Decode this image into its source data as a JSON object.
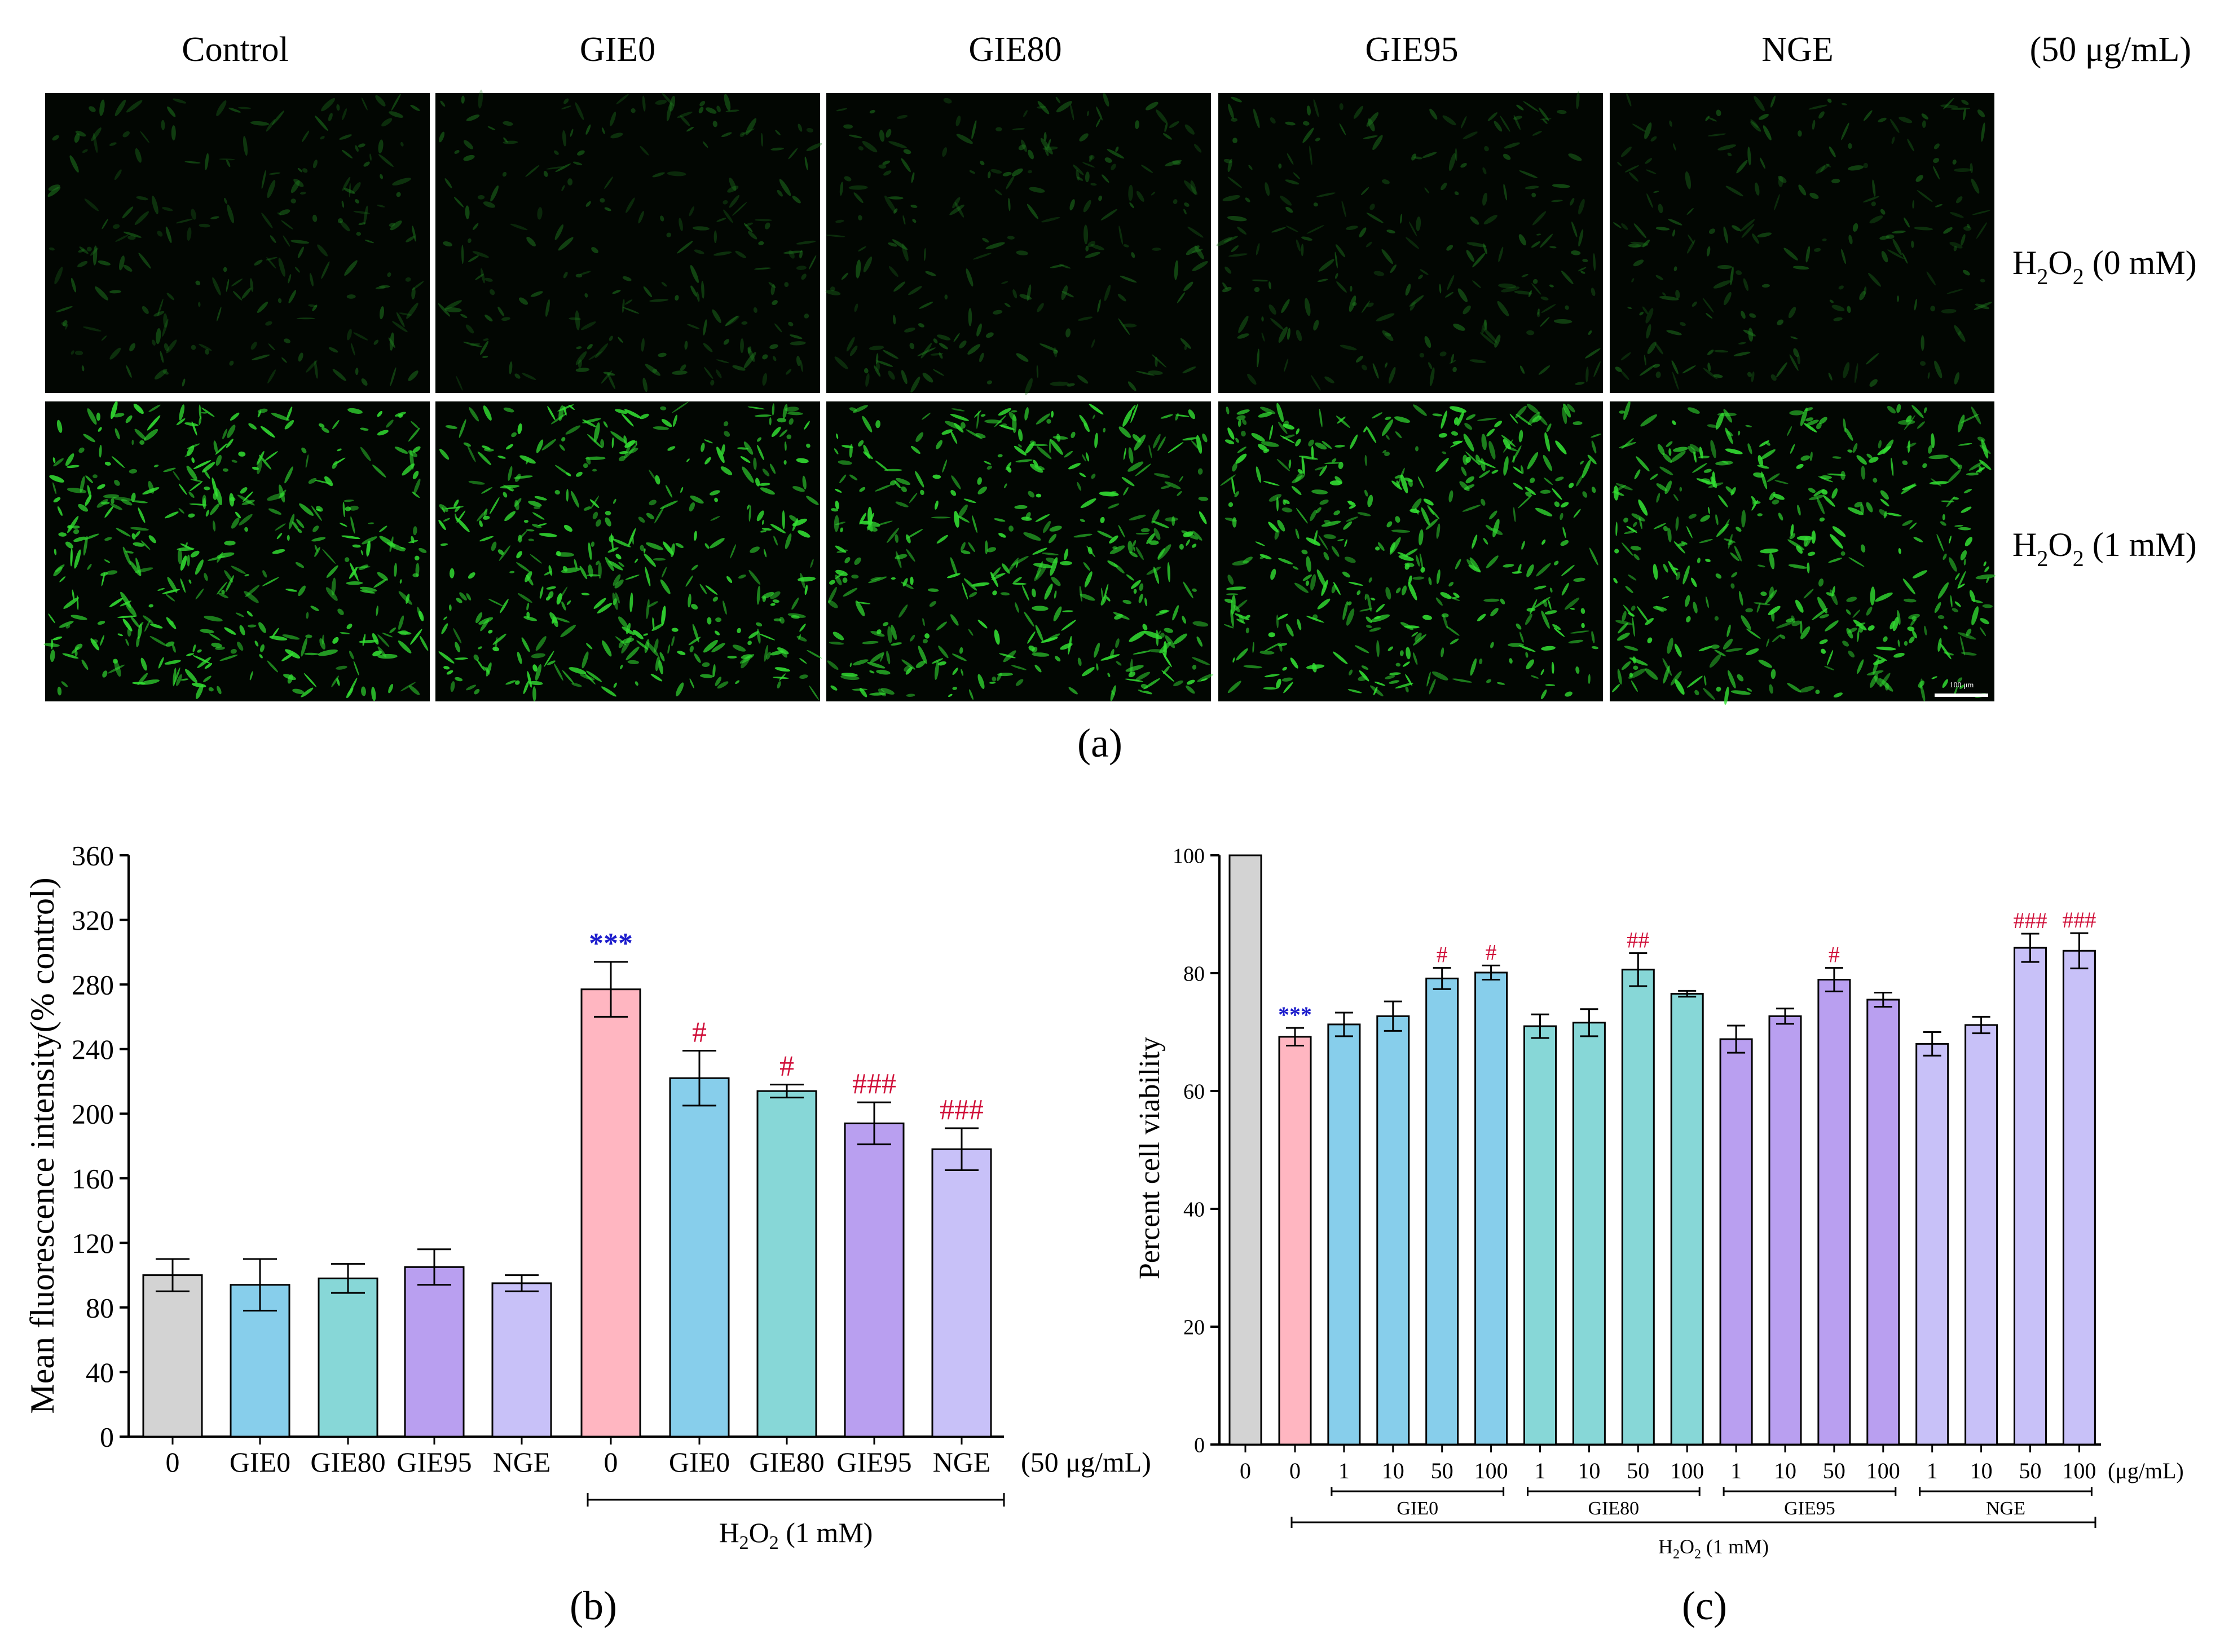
{
  "panel_a": {
    "col_labels": [
      "Control",
      "GIE0",
      "GIE80",
      "GIE95",
      "NGE"
    ],
    "conc_label": "(50 μg/mL)",
    "row_labels": [
      {
        "pre": "H",
        "sub1": "2",
        "mid": "O",
        "sub2": "2",
        "post": " (0 mM)"
      },
      {
        "pre": "H",
        "sub1": "2",
        "mid": "O",
        "sub2": "2",
        "post": " (1 mM)"
      }
    ],
    "scale_bar_label": "100 μm",
    "caption": "(a)"
  },
  "colors": {
    "gray": "#d3d3d3",
    "pink": "#ffb6c1",
    "blue": "#87ceeb",
    "teal": "#87d7d7",
    "purple": "#b99ff0",
    "lavender": "#c8c1f8",
    "sig_blue": "#1c1ccc",
    "sig_red": "#d0103a",
    "micro_bg": "#020602",
    "cell_dim": "#1f7a1f",
    "cell_bright": "#33e033"
  },
  "panel_b": {
    "caption": "(b)",
    "conc_label": "(50 μg/mL)",
    "bracket_label": {
      "pre": "H",
      "sub1": "2",
      "mid": "O",
      "sub2": "2",
      "post": " (1 mM)"
    },
    "chart_data": {
      "type": "bar",
      "ylabel": "Mean fluorescence intensity(% control)",
      "ylim": [
        0,
        360
      ],
      "yticks": [
        0,
        40,
        80,
        120,
        160,
        200,
        240,
        280,
        320,
        360
      ],
      "categories": [
        "0",
        "GIE0",
        "GIE80",
        "GIE95",
        "NGE",
        "0",
        "GIE0",
        "GIE80",
        "GIE95",
        "NGE"
      ],
      "values": [
        100,
        94,
        98,
        105,
        95,
        277,
        222,
        214,
        194,
        178
      ],
      "errors": [
        10,
        16,
        9,
        11,
        5,
        17,
        17,
        4,
        13,
        13
      ],
      "colors": [
        "gray",
        "blue",
        "teal",
        "purple",
        "lavender",
        "pink",
        "blue",
        "teal",
        "purple",
        "lavender"
      ],
      "significance": [
        "",
        "",
        "",
        "",
        "",
        "***",
        "#",
        "#",
        "###",
        "###"
      ],
      "sig_colors": [
        "",
        "",
        "",
        "",
        "",
        "sig_blue",
        "sig_red",
        "sig_red",
        "sig_red",
        "sig_red"
      ]
    }
  },
  "panel_c": {
    "caption": "(c)",
    "unit_label": "(μg/mL)",
    "groups": [
      "GIE0",
      "GIE80",
      "GIE95",
      "NGE"
    ],
    "bracket_label": {
      "pre": "H",
      "sub1": "2",
      "mid": "O",
      "sub2": "2",
      "post": " (1 mM)"
    },
    "chart_data": {
      "type": "bar",
      "ylabel": "Percent cell viability",
      "ylim": [
        0,
        100
      ],
      "yticks": [
        0,
        20,
        40,
        60,
        80,
        100
      ],
      "categories": [
        "0",
        "0",
        "1",
        "10",
        "50",
        "100",
        "1",
        "10",
        "50",
        "100",
        "1",
        "10",
        "50",
        "100",
        "1",
        "10",
        "50",
        "100"
      ],
      "values": [
        100,
        69.2,
        71.3,
        72.7,
        79.1,
        80.1,
        71.0,
        71.6,
        80.6,
        76.5,
        68.8,
        72.7,
        78.9,
        75.5,
        68.0,
        71.2,
        84.3,
        83.8
      ],
      "errors": [
        0,
        1.5,
        2.0,
        2.5,
        1.8,
        1.2,
        2.0,
        2.3,
        2.8,
        0.5,
        2.3,
        1.3,
        2.0,
        1.2,
        2.0,
        1.4,
        2.4,
        3.0
      ],
      "colors": [
        "gray",
        "pink",
        "blue",
        "blue",
        "blue",
        "blue",
        "teal",
        "teal",
        "teal",
        "teal",
        "purple",
        "purple",
        "purple",
        "purple",
        "lavender",
        "lavender",
        "lavender",
        "lavender"
      ],
      "significance": [
        "",
        "***",
        "",
        "",
        "#",
        "#",
        "",
        "",
        "##",
        "",
        "",
        "",
        "#",
        "",
        "",
        "",
        "###",
        "###"
      ],
      "sig_colors": [
        "",
        "sig_blue",
        "",
        "",
        "sig_red",
        "sig_red",
        "",
        "",
        "sig_red",
        "",
        "",
        "",
        "sig_red",
        "",
        "",
        "",
        "sig_red",
        "sig_red"
      ]
    }
  }
}
